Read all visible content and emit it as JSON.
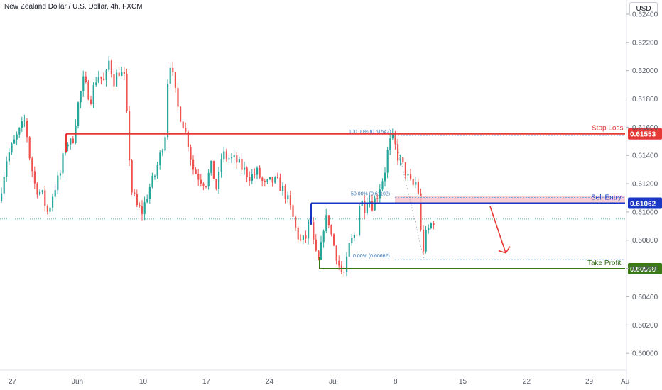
{
  "header": {
    "title": "New Zealand Dollar / U.S. Dollar, 4h, FXCM",
    "currency_button": "USD"
  },
  "colors": {
    "up": "#26a69a",
    "down": "#ef5350",
    "stop_loss": "#e53935",
    "sell_entry": "#1a37c4",
    "take_profit": "#3b7a17",
    "fib": "#6aa2d6"
  },
  "chart_data": {
    "type": "candlestick",
    "title": "New Zealand Dollar / U.S. Dollar, 4h, FXCM",
    "ylim": [
      0.5982,
      0.6245
    ],
    "y_ticks": [
      "0.62400",
      "0.62200",
      "0.62000",
      "0.61800",
      "0.61600",
      "0.61400",
      "0.61200",
      "0.61000",
      "0.60800",
      "0.60600",
      "0.60400",
      "0.60200",
      "0.60000"
    ],
    "x_ticks": [
      "27",
      "Jun",
      "10",
      "17",
      "24",
      "Jul",
      "8",
      "15",
      "22",
      "29",
      "Au"
    ],
    "current_price": 0.6095,
    "levels": [
      {
        "name": "Stop Loss",
        "value": 0.61553,
        "tag": "0.61553"
      },
      {
        "name": "Sell Entry",
        "value": 0.61062,
        "tag": "0.61062"
      },
      {
        "name": "Take Profit",
        "value": 0.60598,
        "tag": "0.60598"
      }
    ],
    "fib_labels": [
      {
        "text": "100.00% (0.61542)",
        "value": 0.61542
      },
      {
        "text": "50.00% (0.61102)",
        "value": 0.61102
      },
      {
        "text": "0.00% (0.60662)",
        "value": 0.60662
      }
    ],
    "sell_zone": [
      0.6106,
      0.6111
    ],
    "arrow": {
      "from": 0.6104,
      "to": 0.6071
    },
    "anchors": [
      [
        0,
        0.6105
      ],
      [
        12,
        0.6138
      ],
      [
        25,
        0.6152
      ],
      [
        38,
        0.6165
      ],
      [
        44,
        0.614
      ],
      [
        52,
        0.6118
      ],
      [
        62,
        0.6112
      ],
      [
        70,
        0.6099
      ],
      [
        78,
        0.6115
      ],
      [
        88,
        0.6128
      ],
      [
        95,
        0.615
      ],
      [
        104,
        0.6148
      ],
      [
        112,
        0.6175
      ],
      [
        120,
        0.6193
      ],
      [
        130,
        0.618
      ],
      [
        140,
        0.6198
      ],
      [
        150,
        0.6191
      ],
      [
        156,
        0.6207
      ],
      [
        163,
        0.6193
      ],
      [
        170,
        0.62
      ],
      [
        178,
        0.6194
      ],
      [
        183,
        0.615
      ],
      [
        188,
        0.6115
      ],
      [
        195,
        0.6104
      ],
      [
        203,
        0.61
      ],
      [
        212,
        0.6116
      ],
      [
        220,
        0.6125
      ],
      [
        228,
        0.614
      ],
      [
        236,
        0.6158
      ],
      [
        240,
        0.6212
      ],
      [
        246,
        0.6195
      ],
      [
        252,
        0.6175
      ],
      [
        260,
        0.6163
      ],
      [
        268,
        0.6148
      ],
      [
        274,
        0.6131
      ],
      [
        282,
        0.6125
      ],
      [
        292,
        0.612
      ],
      [
        300,
        0.6132
      ],
      [
        308,
        0.6115
      ],
      [
        315,
        0.6141
      ],
      [
        325,
        0.6138
      ],
      [
        335,
        0.6136
      ],
      [
        345,
        0.613
      ],
      [
        355,
        0.6125
      ],
      [
        365,
        0.6128
      ],
      [
        375,
        0.6118
      ],
      [
        385,
        0.6122
      ],
      [
        395,
        0.612
      ],
      [
        405,
        0.6112
      ],
      [
        413,
        0.61
      ],
      [
        420,
        0.6085
      ],
      [
        427,
        0.6078
      ],
      [
        433,
        0.6082
      ],
      [
        439,
        0.6098
      ],
      [
        445,
        0.6072
      ],
      [
        452,
        0.6063
      ],
      [
        458,
        0.609
      ],
      [
        464,
        0.6097
      ],
      [
        470,
        0.6081
      ],
      [
        476,
        0.607
      ],
      [
        482,
        0.6058
      ],
      [
        488,
        0.6056
      ],
      [
        494,
        0.6075
      ],
      [
        500,
        0.6082
      ],
      [
        506,
        0.6088
      ],
      [
        510,
        0.6115
      ],
      [
        514,
        0.61
      ],
      [
        520,
        0.6112
      ],
      [
        526,
        0.6105
      ],
      [
        532,
        0.611
      ],
      [
        538,
        0.6119
      ],
      [
        544,
        0.6128
      ],
      [
        550,
        0.6148
      ],
      [
        556,
        0.6152
      ],
      [
        562,
        0.614
      ],
      [
        568,
        0.6134
      ],
      [
        574,
        0.6128
      ],
      [
        580,
        0.612
      ],
      [
        586,
        0.6118
      ],
      [
        590,
        0.6125
      ],
      [
        594,
        0.6094
      ],
      [
        597,
        0.6069
      ],
      [
        601,
        0.6082
      ],
      [
        606,
        0.6088
      ],
      [
        612,
        0.6094
      ]
    ]
  }
}
